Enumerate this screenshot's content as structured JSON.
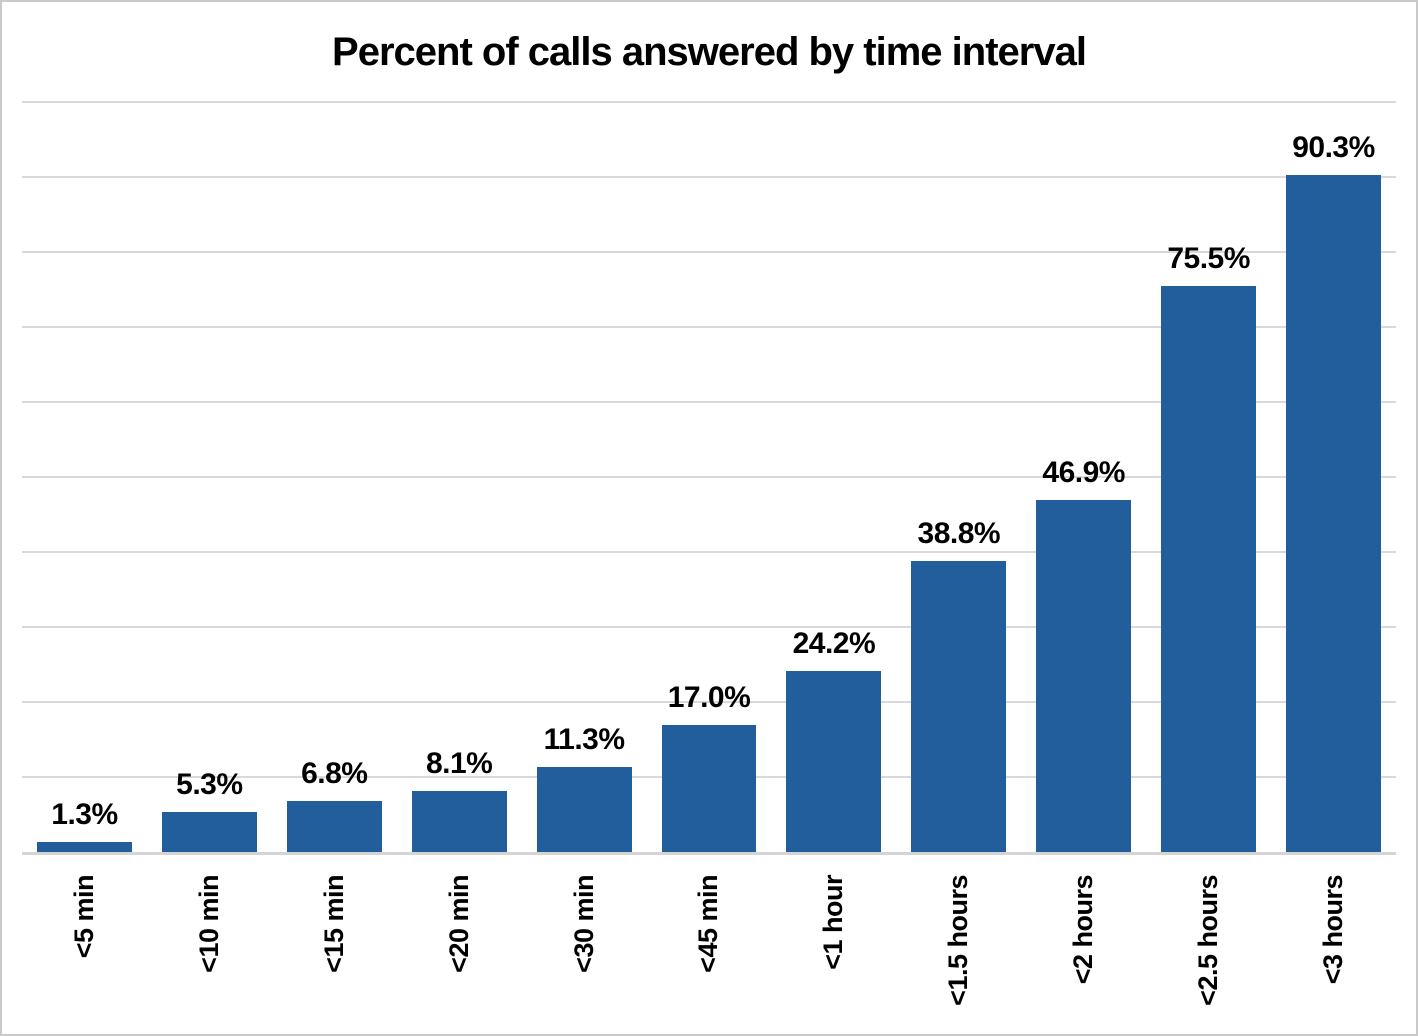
{
  "chart": {
    "bar_color": "#225E9C",
    "gridline_color": "#D9D9D9",
    "axis_line_color": "#D4D4D4",
    "border_color": "#C9C9C9",
    "background_color": "#FFFFFF",
    "text_color": "#000000"
  },
  "chart_data": {
    "type": "bar",
    "title": "Percent of calls answered by time interval",
    "categories": [
      "<5 min",
      "<10 min",
      "<15 min",
      "<20 min",
      "<30 min",
      "<45 min",
      "<1 hour",
      "<1.5 hours",
      "<2 hours",
      "<2.5 hours",
      "<3 hours"
    ],
    "values": [
      1.3,
      5.3,
      6.8,
      8.1,
      11.3,
      17.0,
      24.2,
      38.8,
      46.9,
      75.5,
      90.3
    ],
    "value_labels": [
      "1.3%",
      "5.3%",
      "6.8%",
      "8.1%",
      "11.3%",
      "17.0%",
      "24.2%",
      "38.8%",
      "46.9%",
      "75.5%",
      "90.3%"
    ],
    "xlabel": "",
    "ylabel": "",
    "ylim": [
      0,
      100
    ],
    "gridline_step": 10,
    "grid": true,
    "y_tick_labels_visible": false,
    "legend": false,
    "value_labels_position": "above-bars",
    "category_labels_rotation": 90
  }
}
